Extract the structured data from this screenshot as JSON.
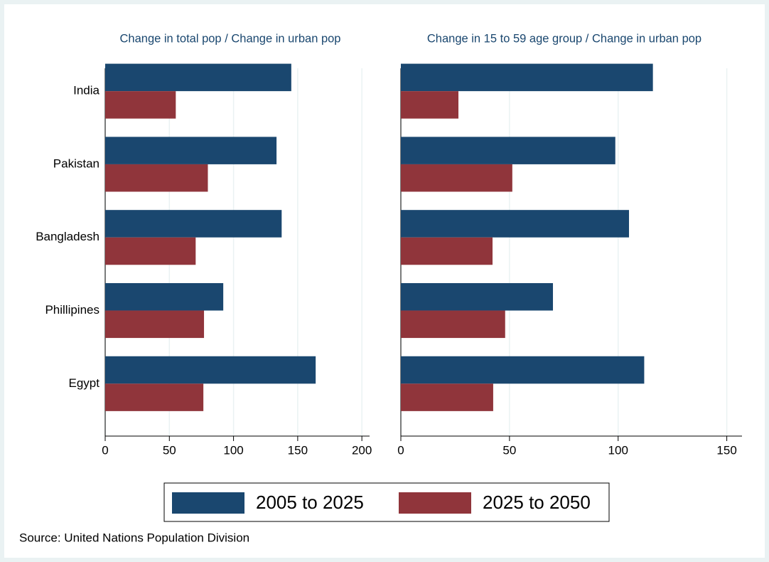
{
  "chart_data": [
    {
      "type": "bar",
      "orientation": "horizontal",
      "title": "Change in total pop / Change in urban pop",
      "categories": [
        "India",
        "Pakistan",
        "Bangladesh",
        "Phillipines",
        "Egypt"
      ],
      "series": [
        {
          "name": "2005 to 2025",
          "color": "#1a476f",
          "values": [
            145,
            133.5,
            137.5,
            92,
            164
          ]
        },
        {
          "name": "2025 to 2050",
          "color": "#90353b",
          "values": [
            55,
            80,
            70.5,
            77,
            76.5
          ]
        }
      ],
      "xlim": [
        0,
        206
      ],
      "xticks": [
        0,
        50,
        100,
        150,
        200
      ],
      "grid": true
    },
    {
      "type": "bar",
      "orientation": "horizontal",
      "title": "Change in 15 to 59 age group / Change in urban pop",
      "series": [
        {
          "color": "#1a476f",
          "values": [
            116,
            98.7,
            105,
            70,
            112
          ]
        },
        {
          "color": "#90353b",
          "values": [
            26.5,
            51.3,
            42.2,
            48,
            42.5
          ]
        }
      ],
      "xlim": [
        0,
        157
      ],
      "xticks": [
        0,
        50,
        100,
        150
      ],
      "grid": true
    }
  ],
  "source": "Source: United Nations Population Division"
}
